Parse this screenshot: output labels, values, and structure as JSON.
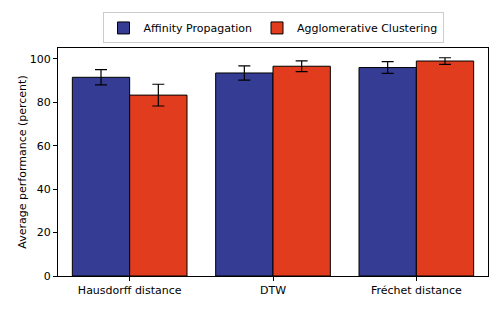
{
  "chart_data": {
    "type": "bar",
    "categories": [
      "Hausdorff distance",
      "DTW",
      "Fréchet distance"
    ],
    "series": [
      {
        "name": "Affinity Propagation",
        "color": "#343c94",
        "values": [
          91.5,
          93.5,
          96.0
        ],
        "errors": [
          3.5,
          3.3,
          2.7
        ]
      },
      {
        "name": "Agglomerative Clustering",
        "color": "#e23c1e",
        "values": [
          83.3,
          96.6,
          99.0
        ],
        "errors": [
          5.0,
          2.5,
          1.5
        ]
      }
    ],
    "y_label": "Average performance (percent)",
    "ylim": [
      0,
      105
    ],
    "yticks": [
      0,
      20,
      40,
      60,
      80,
      100
    ],
    "grid": false,
    "legend": "top"
  }
}
